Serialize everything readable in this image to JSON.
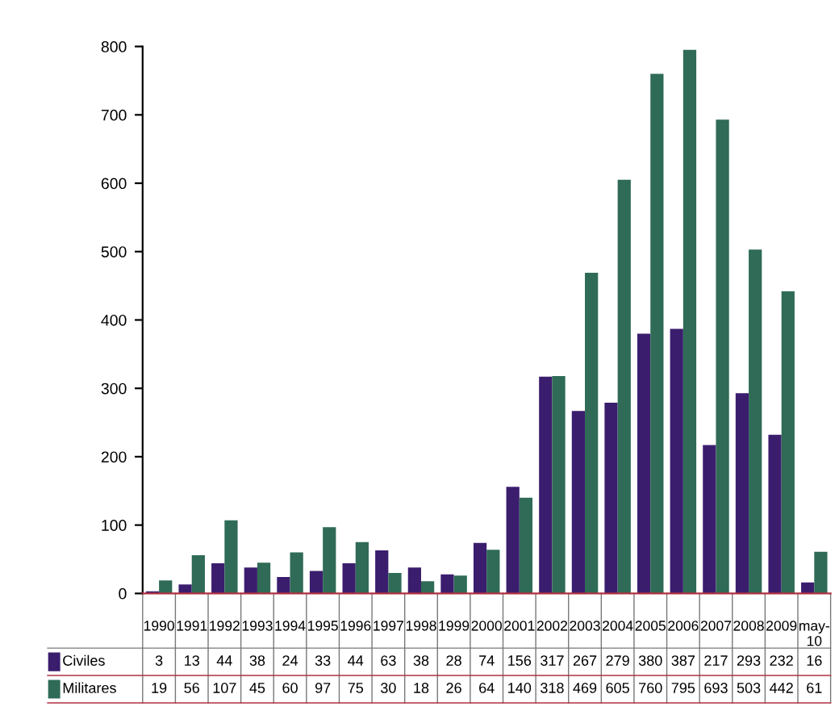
{
  "chart_data": {
    "type": "bar",
    "categories": [
      "1990",
      "1991",
      "1992",
      "1993",
      "1994",
      "1995",
      "1996",
      "1997",
      "1998",
      "1999",
      "2000",
      "2001",
      "2002",
      "2003",
      "2004",
      "2005",
      "2006",
      "2007",
      "2008",
      "2009",
      "may-10"
    ],
    "series": [
      {
        "name": "Civiles",
        "color": "#3b1d6e",
        "values": [
          3,
          13,
          44,
          38,
          24,
          33,
          44,
          63,
          38,
          28,
          74,
          156,
          317,
          267,
          279,
          380,
          387,
          217,
          293,
          232,
          16
        ]
      },
      {
        "name": "Militares",
        "color": "#2f6b56",
        "values": [
          19,
          56,
          107,
          45,
          60,
          97,
          75,
          30,
          18,
          26,
          64,
          140,
          318,
          469,
          605,
          760,
          795,
          693,
          503,
          442,
          61
        ]
      }
    ],
    "ylim": [
      0,
      800
    ],
    "yticks": [
      0,
      100,
      200,
      300,
      400,
      500,
      600,
      700,
      800
    ],
    "grid": false,
    "legend": "bottom",
    "data_labels": true
  }
}
